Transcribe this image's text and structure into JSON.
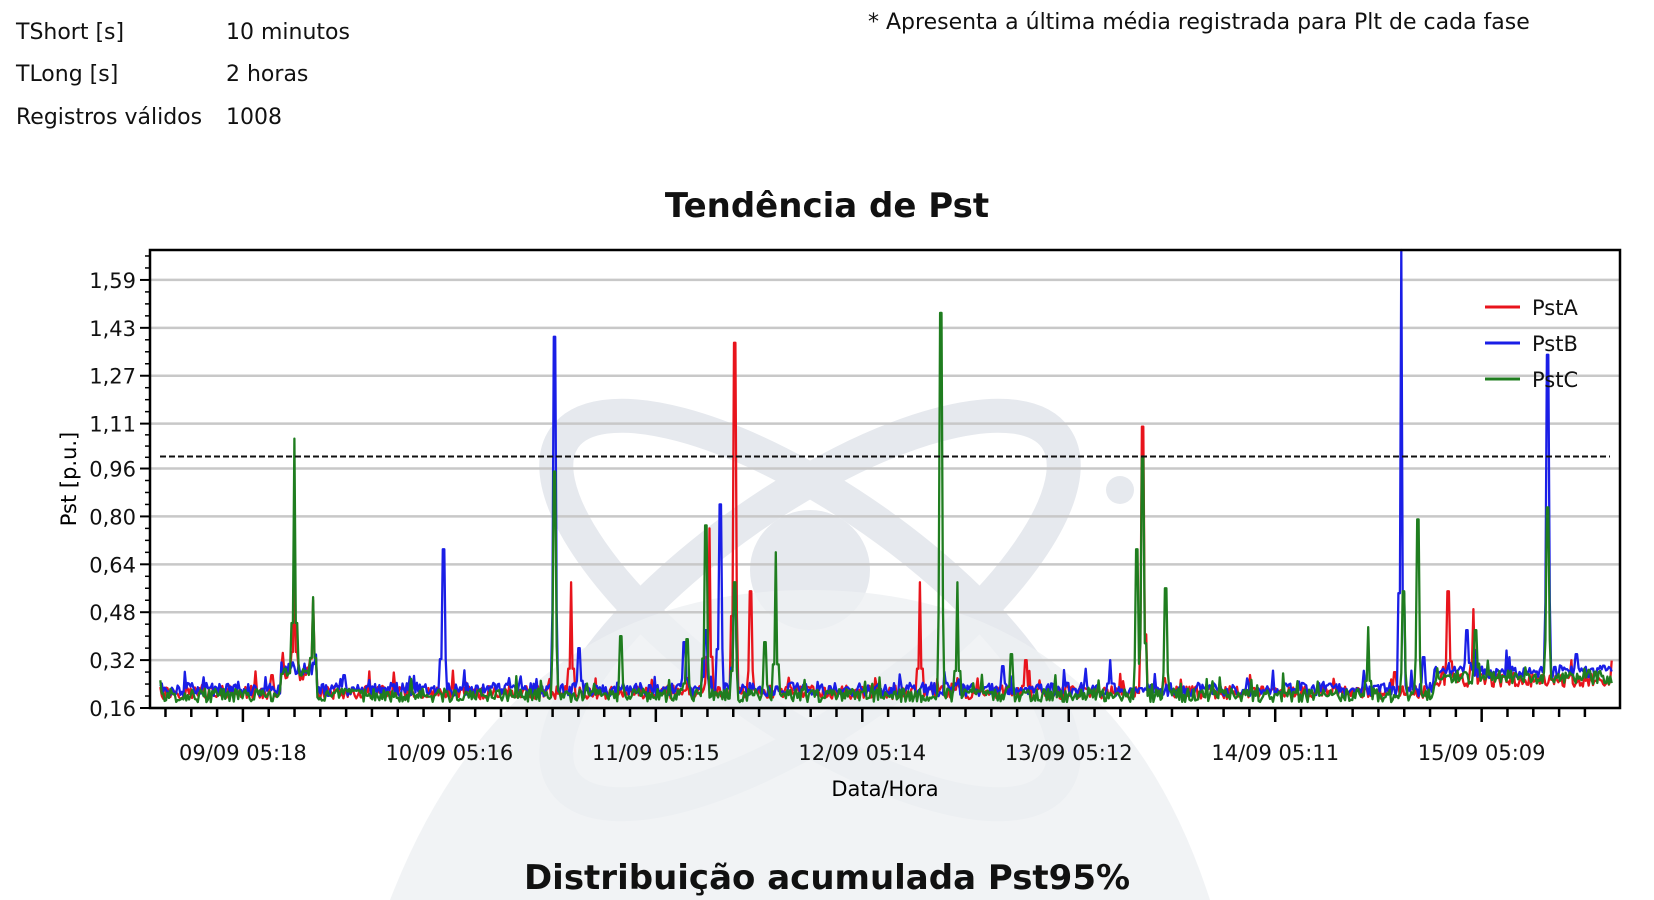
{
  "info": {
    "top_partial": "",
    "rows": [
      {
        "label": "TShort [s]",
        "value": "10 minutos"
      },
      {
        "label": "TLong [s]",
        "value": "2 horas"
      },
      {
        "label": "Registros válidos",
        "value": "1008"
      }
    ],
    "note": "* Apresenta a última média registrada para Plt de cada fase"
  },
  "subtitle": "Distribuição acumulada Pst95%",
  "colors": {
    "PstA": "#e8141c",
    "PstB": "#1a1ee6",
    "PstC": "#1f7d1f",
    "limit": "#111111",
    "grid": "#c8c8c8"
  },
  "chart_data": {
    "type": "line",
    "title": "Tendência de Pst",
    "xlabel": "Data/Hora",
    "ylabel": "Pst [p.u.]",
    "x_unit": "days since 08/09 05:18",
    "xlim": [
      0.55,
      7.67
    ],
    "ylim": [
      0.16,
      1.69
    ],
    "y_ticks": [
      "0,16",
      "0,32",
      "0,48",
      "0,64",
      "0,80",
      "0,96",
      "1,11",
      "1,27",
      "1,43",
      "1,59"
    ],
    "x_ticks": [
      {
        "label": "09/09 05:18",
        "x": 1.0
      },
      {
        "label": "10/09 05:16",
        "x": 2.0
      },
      {
        "label": "11/09 05:15",
        "x": 3.0
      },
      {
        "label": "12/09 05:14",
        "x": 4.0
      },
      {
        "label": "13/09 05:12",
        "x": 5.0
      },
      {
        "label": "14/09 05:11",
        "x": 6.0
      },
      {
        "label": "15/09 05:09",
        "x": 7.0
      }
    ],
    "limit_line": {
      "value": 1.0,
      "style": "dashed"
    },
    "legend": {
      "position": "top-right",
      "entries": [
        "PstA",
        "PstB",
        "PstC"
      ]
    },
    "grid": true,
    "series": [
      {
        "name": "PstA",
        "baseline": 0.21,
        "peaks": [
          [
            0.59,
            0.3
          ],
          [
            1.14,
            0.27
          ],
          [
            1.25,
            0.62
          ],
          [
            1.34,
            0.52
          ],
          [
            2.59,
            0.58
          ],
          [
            3.26,
            0.76
          ],
          [
            3.38,
            1.38
          ],
          [
            3.46,
            0.55
          ],
          [
            4.28,
            0.58
          ],
          [
            4.46,
            0.26
          ],
          [
            4.79,
            0.32
          ],
          [
            5.36,
            1.1
          ],
          [
            5.46,
            0.26
          ],
          [
            6.58,
            0.28
          ],
          [
            6.84,
            0.55
          ],
          [
            6.96,
            0.49
          ],
          [
            7.64,
            0.56
          ]
        ],
        "plateaus": [
          [
            1.18,
            1.36,
            0.27
          ],
          [
            6.77,
            7.65,
            0.25
          ]
        ]
      },
      {
        "name": "PstB",
        "baseline": 0.22,
        "peaks": [
          [
            0.59,
            0.28
          ],
          [
            1.49,
            0.27
          ],
          [
            1.97,
            0.69
          ],
          [
            2.29,
            0.26
          ],
          [
            2.51,
            1.4
          ],
          [
            2.63,
            0.36
          ],
          [
            3.14,
            0.38
          ],
          [
            3.24,
            0.42
          ],
          [
            3.31,
            0.84
          ],
          [
            3.38,
            0.56
          ],
          [
            4.68,
            0.3
          ],
          [
            5.2,
            0.32
          ],
          [
            6.61,
            1.69
          ],
          [
            6.72,
            0.33
          ],
          [
            6.93,
            0.42
          ],
          [
            7.32,
            1.34
          ],
          [
            7.46,
            0.34
          ]
        ],
        "plateaus": [
          [
            1.18,
            1.36,
            0.29
          ],
          [
            6.77,
            7.65,
            0.28
          ]
        ]
      },
      {
        "name": "PstC",
        "baseline": 0.2,
        "peaks": [
          [
            0.59,
            0.44
          ],
          [
            1.25,
            1.06
          ],
          [
            1.34,
            0.53
          ],
          [
            2.51,
            0.95
          ],
          [
            2.83,
            0.4
          ],
          [
            3.15,
            0.39
          ],
          [
            3.24,
            0.77
          ],
          [
            3.38,
            0.58
          ],
          [
            3.53,
            0.38
          ],
          [
            3.58,
            0.68
          ],
          [
            4.38,
            1.48
          ],
          [
            4.46,
            0.58
          ],
          [
            4.72,
            0.34
          ],
          [
            5.33,
            0.69
          ],
          [
            5.36,
            1.0
          ],
          [
            5.47,
            0.56
          ],
          [
            6.45,
            0.43
          ],
          [
            6.62,
            0.55
          ],
          [
            6.69,
            0.79
          ],
          [
            6.97,
            0.42
          ],
          [
            7.32,
            0.83
          ]
        ],
        "plateaus": [
          [
            1.18,
            1.36,
            0.27
          ],
          [
            6.77,
            7.65,
            0.26
          ]
        ]
      }
    ]
  }
}
